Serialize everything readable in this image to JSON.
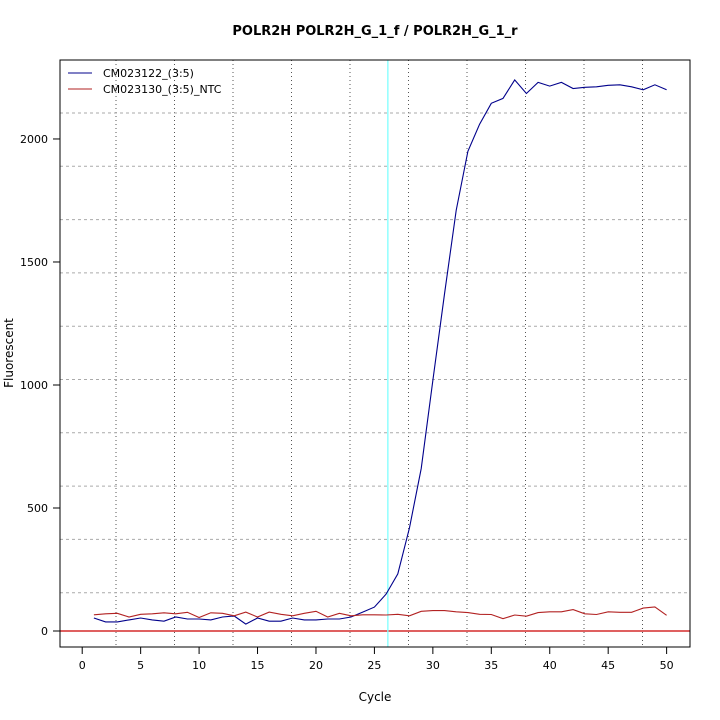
{
  "chart_data": {
    "type": "line",
    "title": "POLR2H  POLR2H_G_1_f / POLR2H_G_1_r",
    "xlabel": "Cycle",
    "ylabel": "Fluorescent",
    "xlim": [
      -1.9,
      52
    ],
    "ylim": [
      -65,
      2321
    ],
    "xticks": [
      0,
      5,
      10,
      15,
      20,
      25,
      30,
      35,
      40,
      45,
      50
    ],
    "yticks": [
      0,
      500,
      1000,
      1500,
      2000
    ],
    "grid": true,
    "legend": "top-left",
    "threshold": {
      "x": 26.15,
      "color": "#7fffff"
    },
    "baseline": {
      "y": 0,
      "color": "#cc0000"
    },
    "x": [
      1,
      2,
      3,
      4,
      5,
      6,
      7,
      8,
      9,
      10,
      11,
      12,
      13,
      14,
      15,
      16,
      17,
      18,
      19,
      20,
      21,
      22,
      23,
      24,
      25,
      26,
      27,
      28,
      29,
      30,
      31,
      32,
      33,
      34,
      35,
      36,
      37,
      38,
      39,
      40,
      41,
      42,
      43,
      44,
      45,
      46,
      47,
      48,
      49,
      50
    ],
    "series": [
      {
        "name": "CM023122_(3:5)",
        "color": "#00008b",
        "values": [
          53,
          37,
          37,
          45,
          53,
          45,
          40,
          57,
          49,
          49,
          45,
          57,
          61,
          28,
          53,
          40,
          40,
          53,
          45,
          45,
          49,
          49,
          57,
          77,
          97,
          150,
          232,
          420,
          660,
          1020,
          1370,
          1710,
          1950,
          2060,
          2145,
          2165,
          2240,
          2185,
          2230,
          2215,
          2230,
          2205,
          2210,
          2212,
          2218,
          2220,
          2212,
          2200,
          2220,
          2200
        ]
      },
      {
        "name": "CM023130_(3:5)_NTC",
        "color": "#b22222",
        "values": [
          66,
          70,
          72,
          57,
          68,
          70,
          74,
          70,
          76,
          55,
          74,
          72,
          62,
          77,
          57,
          77,
          68,
          62,
          72,
          80,
          57,
          72,
          62,
          66,
          66,
          65,
          68,
          62,
          80,
          83,
          83,
          78,
          75,
          68,
          67,
          50,
          65,
          60,
          75,
          78,
          78,
          87,
          70,
          67,
          78,
          76,
          76,
          93,
          98,
          64
        ]
      }
    ]
  }
}
